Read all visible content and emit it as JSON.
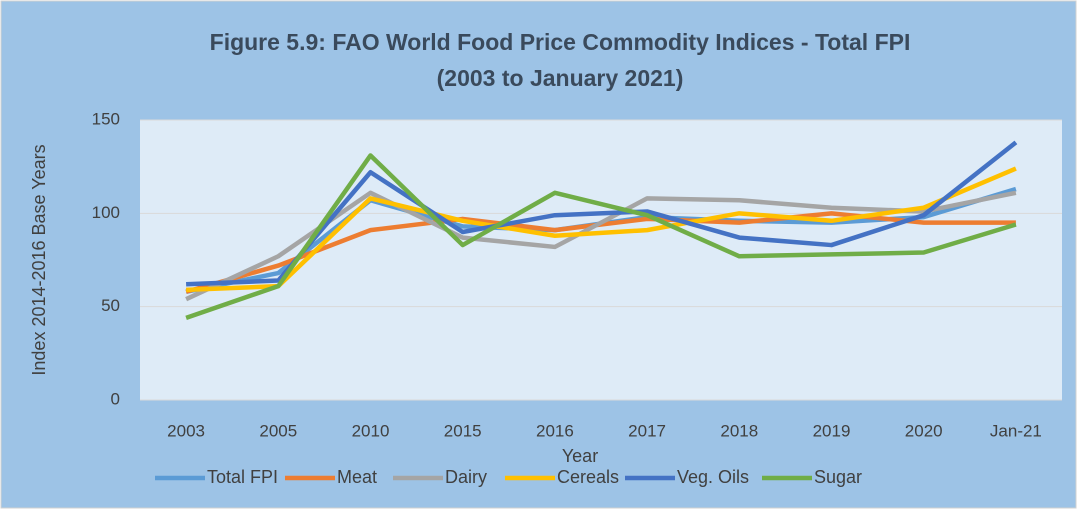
{
  "chart_data": {
    "type": "line",
    "title": "Figure 5.9: FAO World Food Price Commodity Indices - Total FPI",
    "subtitle": "(2003 to January 2021)",
    "x_label": "Year",
    "y_label": "Index 2014-2016 Base Years",
    "categories": [
      "2003",
      "2005",
      "2010",
      "2015",
      "2016",
      "2017",
      "2018",
      "2019",
      "2020",
      "Jan-21"
    ],
    "series": [
      {
        "name": "Total FPI",
        "color": "#5b9bd5",
        "values": [
          58,
          68,
          107,
          93,
          91,
          98,
          96,
          95,
          98,
          113
        ]
      },
      {
        "name": "Meat",
        "color": "#ed7d31",
        "values": [
          58,
          72,
          91,
          97,
          91,
          97,
          95,
          100,
          95,
          95
        ]
      },
      {
        "name": "Dairy",
        "color": "#a5a5a5",
        "values": [
          54,
          77,
          111,
          87,
          82,
          108,
          107,
          103,
          101,
          111
        ]
      },
      {
        "name": "Cereals",
        "color": "#ffc000",
        "values": [
          59,
          61,
          108,
          96,
          88,
          91,
          100,
          96,
          103,
          124
        ]
      },
      {
        "name": "Veg. Oils",
        "color": "#4472c4",
        "values": [
          62,
          64,
          122,
          90,
          99,
          101,
          87,
          83,
          99,
          138
        ]
      },
      {
        "name": "Sugar",
        "color": "#70ad47",
        "values": [
          44,
          61,
          131,
          83,
          111,
          99,
          77,
          78,
          79,
          94
        ]
      }
    ],
    "ylim": [
      0,
      150
    ],
    "yticks": [
      0,
      50,
      100,
      150
    ],
    "grid": true,
    "legend": "bottom"
  }
}
